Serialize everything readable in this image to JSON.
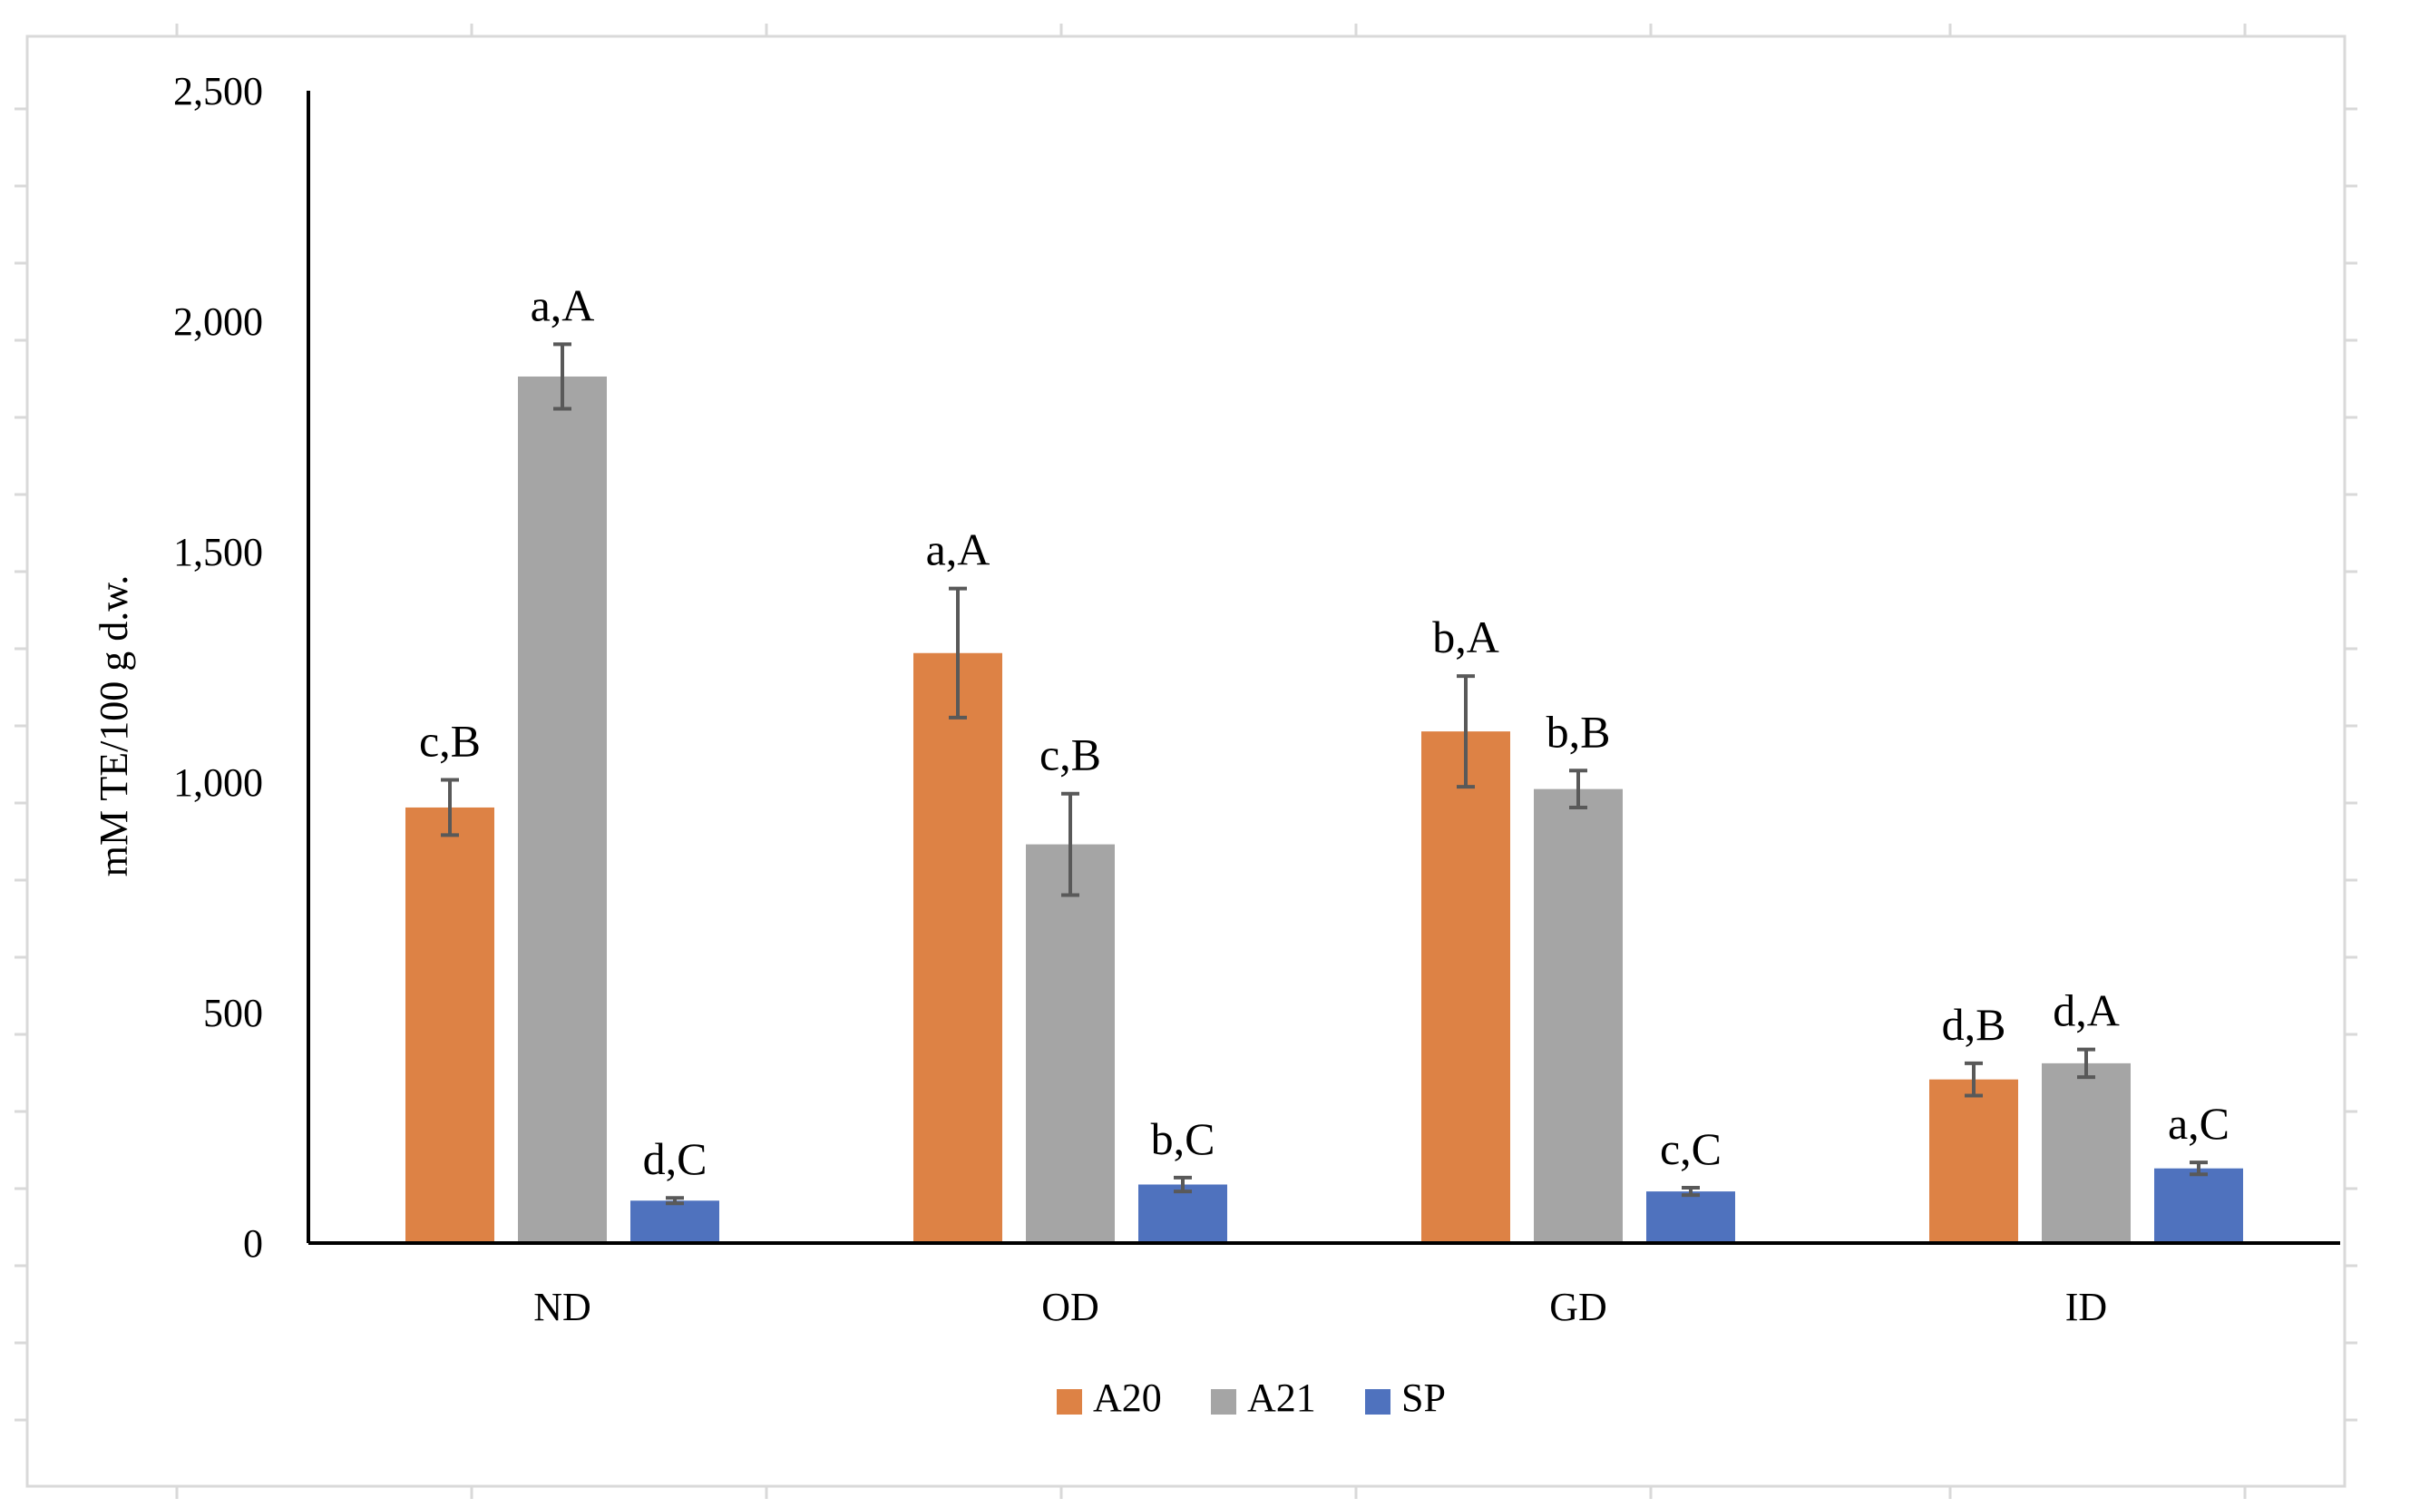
{
  "chart_data": {
    "type": "bar",
    "title": "",
    "xlabel": "",
    "ylabel": "mM TE/100 g d.w.",
    "ylim": [
      0,
      2500
    ],
    "yticks": [
      0,
      500,
      1000,
      1500,
      2000,
      2500
    ],
    "ytick_labels": [
      "0",
      "500",
      "1,000",
      "1,500",
      "2,000",
      "2,500"
    ],
    "categories": [
      "ND",
      "OD",
      "GD",
      "ID"
    ],
    "legend_position": "bottom",
    "grid": false,
    "series": [
      {
        "name": "A20",
        "color": "#DD8245",
        "values": [
          945,
          1280,
          1110,
          355
        ],
        "errors": [
          60,
          140,
          120,
          35
        ],
        "labels": [
          "c,B",
          "a,A",
          "b,A",
          "d,B"
        ]
      },
      {
        "name": "A21",
        "color": "#A5A5A5",
        "values": [
          1880,
          865,
          985,
          390
        ],
        "errors": [
          70,
          110,
          40,
          30
        ],
        "labels": [
          "a,A",
          "c,B",
          "b,B",
          "d,A"
        ]
      },
      {
        "name": "SP",
        "color": "#4F72BE",
        "values": [
          92,
          127,
          112,
          162
        ],
        "errors": [
          6,
          15,
          8,
          13
        ],
        "labels": [
          "d,C",
          "b,C",
          "c,C",
          "a,C"
        ]
      }
    ]
  }
}
